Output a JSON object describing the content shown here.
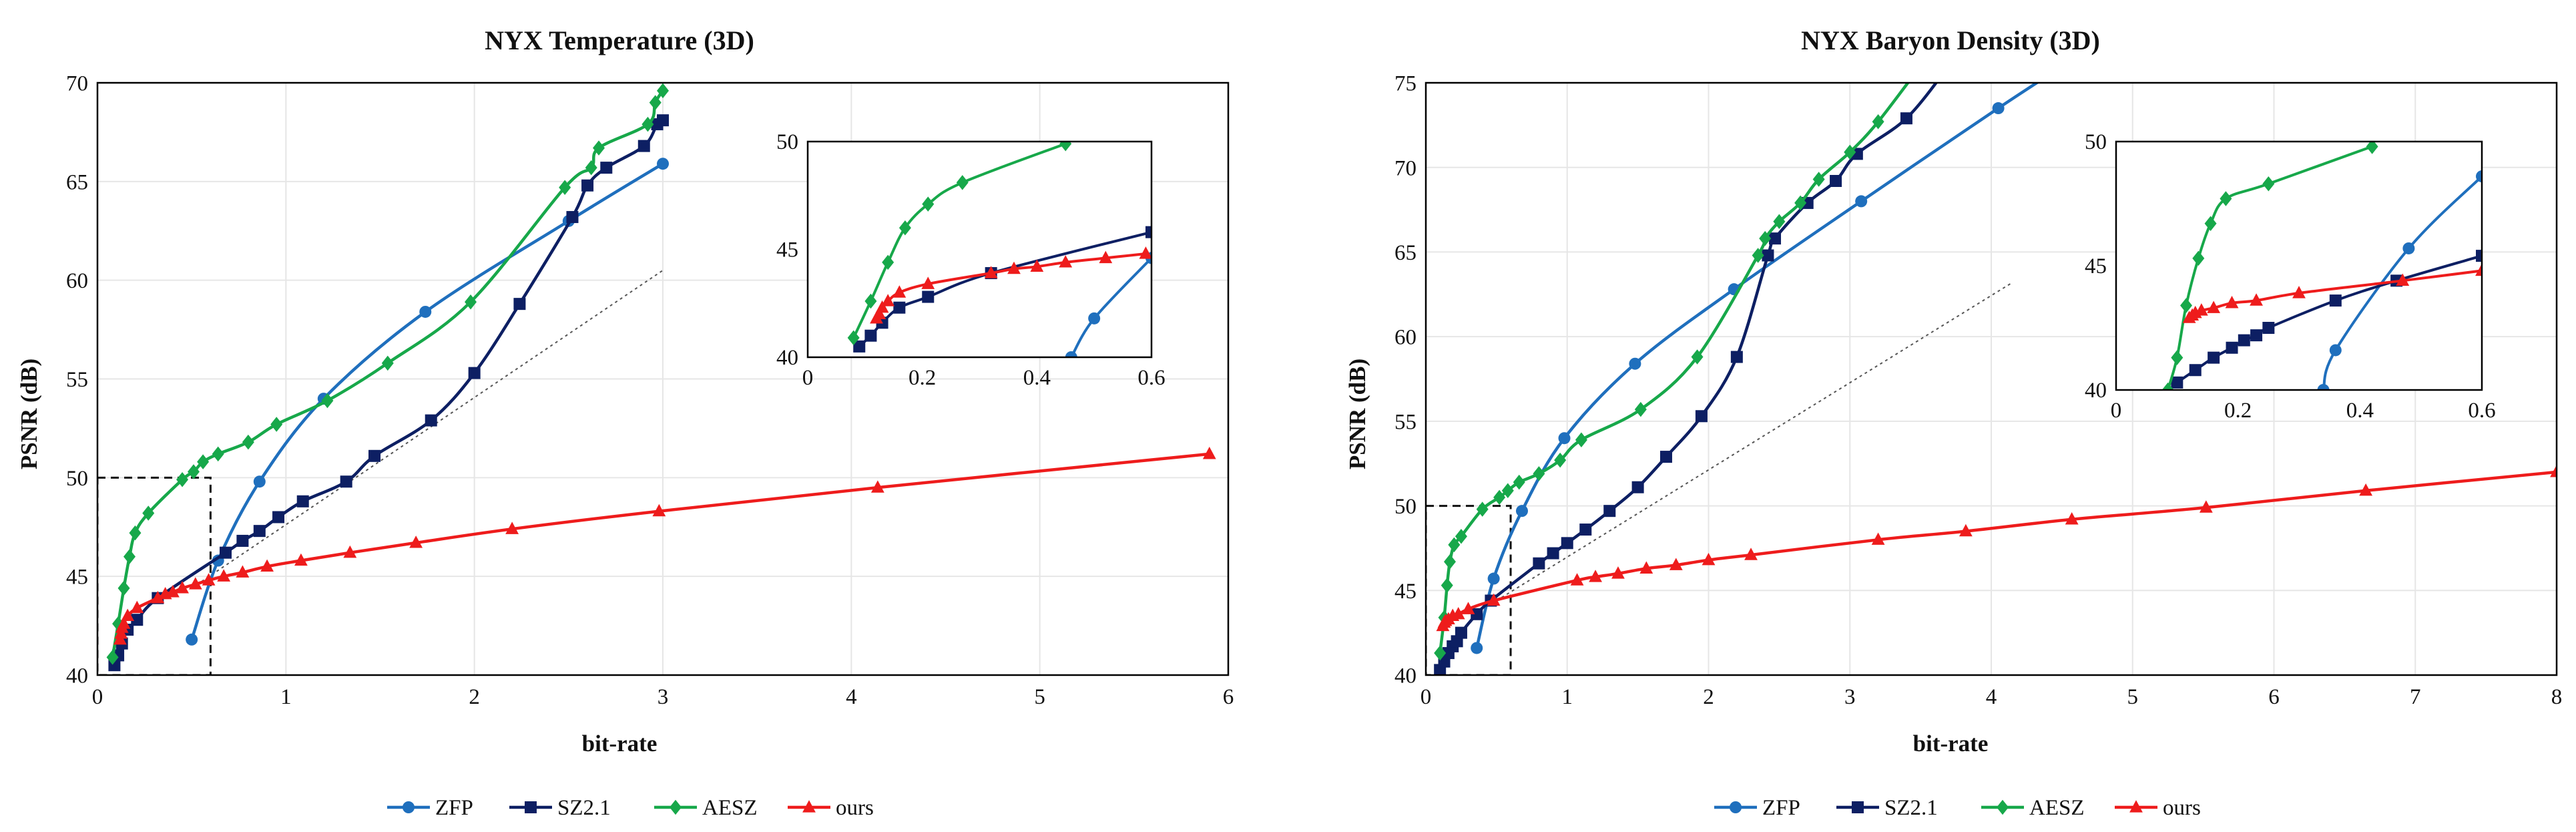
{
  "colors": {
    "ZFP": "#1f6fbd",
    "SZ2.1": "#0d1f63",
    "AESZ": "#17a84a",
    "ours": "#ee1c1c"
  },
  "chart_data": [
    {
      "type": "line",
      "title": "NYX Temperature (3D)",
      "xlabel": "bit-rate",
      "ylabel": "PSNR (dB)",
      "xlim": [
        0,
        6
      ],
      "ylim": [
        40,
        70
      ],
      "xticks": [
        0,
        1,
        2,
        3,
        4,
        5,
        6
      ],
      "yticks": [
        40,
        45,
        50,
        55,
        60,
        65,
        70
      ],
      "grid": true,
      "legend": "bottom",
      "series": [
        {
          "name": "ZFP",
          "marker": "circle",
          "points": [
            [
              0.5,
              41.8
            ],
            [
              0.64,
              45.8
            ],
            [
              0.86,
              49.8
            ],
            [
              1.2,
              54
            ],
            [
              1.74,
              58.4
            ],
            [
              2.5,
              63
            ],
            [
              3.0,
              65.9
            ]
          ]
        },
        {
          "name": "SZ2.1",
          "marker": "square",
          "points": [
            [
              0.09,
              40.5
            ],
            [
              0.11,
              41
            ],
            [
              0.13,
              41.6
            ],
            [
              0.16,
              42.3
            ],
            [
              0.21,
              42.8
            ],
            [
              0.32,
              43.9
            ],
            [
              0.68,
              46.2
            ],
            [
              0.77,
              46.8
            ],
            [
              0.86,
              47.3
            ],
            [
              0.96,
              48
            ],
            [
              1.09,
              48.8
            ],
            [
              1.32,
              49.8
            ],
            [
              1.47,
              51.1
            ],
            [
              1.77,
              52.9
            ],
            [
              2.0,
              55.3
            ],
            [
              2.24,
              58.8
            ],
            [
              2.52,
              63.2
            ],
            [
              2.6,
              64.8
            ],
            [
              2.7,
              65.7
            ],
            [
              2.9,
              66.8
            ],
            [
              2.97,
              67.9
            ],
            [
              3.0,
              68.1
            ]
          ]
        },
        {
          "name": "AESZ",
          "marker": "diamond",
          "points": [
            [
              0.08,
              40.9
            ],
            [
              0.11,
              42.6
            ],
            [
              0.14,
              44.4
            ],
            [
              0.17,
              46
            ],
            [
              0.2,
              47.2
            ],
            [
              0.27,
              48.2
            ],
            [
              0.45,
              49.9
            ],
            [
              0.51,
              50.3
            ],
            [
              0.56,
              50.8
            ],
            [
              0.64,
              51.2
            ],
            [
              0.8,
              51.8
            ],
            [
              0.95,
              52.7
            ],
            [
              1.22,
              53.9
            ],
            [
              1.54,
              55.8
            ],
            [
              1.98,
              58.9
            ],
            [
              2.48,
              64.7
            ],
            [
              2.62,
              65.7
            ],
            [
              2.66,
              66.7
            ],
            [
              2.92,
              67.9
            ],
            [
              2.96,
              69
            ],
            [
              3.0,
              69.6
            ]
          ]
        },
        {
          "name": "ours",
          "marker": "triangle",
          "points": [
            [
              0.12,
              41.8
            ],
            [
              0.125,
              42.1
            ],
            [
              0.13,
              42.4
            ],
            [
              0.14,
              42.6
            ],
            [
              0.16,
              43
            ],
            [
              0.21,
              43.4
            ],
            [
              0.32,
              43.9
            ],
            [
              0.36,
              44.1
            ],
            [
              0.4,
              44.2
            ],
            [
              0.45,
              44.4
            ],
            [
              0.52,
              44.6
            ],
            [
              0.59,
              44.8
            ],
            [
              0.67,
              45
            ],
            [
              0.77,
              45.2
            ],
            [
              0.9,
              45.5
            ],
            [
              1.08,
              45.8
            ],
            [
              1.34,
              46.2
            ],
            [
              1.69,
              46.7
            ],
            [
              2.2,
              47.4
            ],
            [
              2.98,
              48.3
            ],
            [
              4.14,
              49.5
            ],
            [
              5.9,
              51.2
            ]
          ]
        }
      ],
      "inset": {
        "xlim": [
          0,
          0.6
        ],
        "ylim": [
          40,
          50
        ],
        "xticks": [
          0,
          0.2,
          0.4,
          0.6
        ],
        "yticks": [
          40,
          45,
          50
        ],
        "series": [
          {
            "name": "ZFP",
            "points": [
              [
                0.46,
                40
              ],
              [
                0.5,
                41.8
              ],
              [
                0.6,
                44.6
              ]
            ]
          },
          {
            "name": "SZ2.1",
            "points": [
              [
                0.09,
                40.5
              ],
              [
                0.11,
                41
              ],
              [
                0.13,
                41.6
              ],
              [
                0.16,
                42.3
              ],
              [
                0.21,
                42.8
              ],
              [
                0.32,
                43.9
              ],
              [
                0.6,
                45.8
              ]
            ]
          },
          {
            "name": "AESZ",
            "points": [
              [
                0.08,
                40.9
              ],
              [
                0.11,
                42.6
              ],
              [
                0.14,
                44.4
              ],
              [
                0.17,
                46
              ],
              [
                0.21,
                47.1
              ],
              [
                0.27,
                48.1
              ],
              [
                0.45,
                49.9
              ]
            ]
          },
          {
            "name": "ours",
            "points": [
              [
                0.12,
                41.8
              ],
              [
                0.125,
                42
              ],
              [
                0.13,
                42.3
              ],
              [
                0.14,
                42.6
              ],
              [
                0.16,
                43
              ],
              [
                0.21,
                43.4
              ],
              [
                0.32,
                43.9
              ],
              [
                0.36,
                44.1
              ],
              [
                0.4,
                44.2
              ],
              [
                0.45,
                44.4
              ],
              [
                0.52,
                44.6
              ],
              [
                0.59,
                44.8
              ]
            ]
          }
        ]
      }
    },
    {
      "type": "line",
      "title": "NYX Baryon Density (3D)",
      "xlabel": "bit-rate",
      "ylabel": "PSNR (dB)",
      "xlim": [
        0,
        8
      ],
      "ylim": [
        40,
        75
      ],
      "xticks": [
        0,
        1,
        2,
        3,
        4,
        5,
        6,
        7,
        8
      ],
      "yticks": [
        40,
        45,
        50,
        55,
        60,
        65,
        70,
        75
      ],
      "grid": true,
      "legend": "bottom",
      "series": [
        {
          "name": "ZFP",
          "marker": "circle",
          "points": [
            [
              0.36,
              41.6
            ],
            [
              0.48,
              45.7
            ],
            [
              0.68,
              49.7
            ],
            [
              0.98,
              54
            ],
            [
              1.48,
              58.4
            ],
            [
              2.18,
              62.8
            ],
            [
              3.08,
              68
            ],
            [
              4.05,
              73.5
            ],
            [
              4.6,
              76.5
            ]
          ]
        },
        {
          "name": "SZ2.1",
          "marker": "square",
          "points": [
            [
              0.1,
              40.3
            ],
            [
              0.13,
              40.8
            ],
            [
              0.16,
              41.3
            ],
            [
              0.19,
              41.7
            ],
            [
              0.22,
              42
            ],
            [
              0.25,
              42.5
            ],
            [
              0.36,
              43.6
            ],
            [
              0.46,
              44.4
            ],
            [
              0.8,
              46.6
            ],
            [
              0.9,
              47.2
            ],
            [
              1.0,
              47.8
            ],
            [
              1.13,
              48.6
            ],
            [
              1.3,
              49.7
            ],
            [
              1.5,
              51.1
            ],
            [
              1.7,
              52.9
            ],
            [
              1.95,
              55.3
            ],
            [
              2.2,
              58.8
            ],
            [
              2.42,
              64.8
            ],
            [
              2.47,
              65.8
            ],
            [
              2.7,
              67.9
            ],
            [
              2.9,
              69.2
            ],
            [
              3.05,
              70.8
            ],
            [
              3.4,
              72.9
            ],
            [
              3.7,
              76
            ]
          ]
        },
        {
          "name": "AESZ",
          "marker": "diamond",
          "points": [
            [
              0.1,
              41.3
            ],
            [
              0.13,
              43.4
            ],
            [
              0.15,
              45.3
            ],
            [
              0.17,
              46.7
            ],
            [
              0.2,
              47.7
            ],
            [
              0.25,
              48.2
            ],
            [
              0.4,
              49.8
            ],
            [
              0.52,
              50.5
            ],
            [
              0.58,
              50.9
            ],
            [
              0.66,
              51.4
            ],
            [
              0.8,
              51.9
            ],
            [
              0.95,
              52.7
            ],
            [
              1.1,
              53.9
            ],
            [
              1.52,
              55.7
            ],
            [
              1.92,
              58.8
            ],
            [
              2.35,
              64.8
            ],
            [
              2.4,
              65.8
            ],
            [
              2.5,
              66.8
            ],
            [
              2.65,
              67.9
            ],
            [
              2.78,
              69.3
            ],
            [
              3.0,
              70.9
            ],
            [
              3.2,
              72.7
            ],
            [
              3.5,
              76
            ]
          ]
        },
        {
          "name": "ours",
          "marker": "triangle",
          "points": [
            [
              0.12,
              42.9
            ],
            [
              0.13,
              43.1
            ],
            [
              0.14,
              43.2
            ],
            [
              0.16,
              43.3
            ],
            [
              0.19,
              43.5
            ],
            [
              0.23,
              43.6
            ],
            [
              0.3,
              43.9
            ],
            [
              0.48,
              44.4
            ],
            [
              1.07,
              45.6
            ],
            [
              1.2,
              45.8
            ],
            [
              1.36,
              46
            ],
            [
              1.56,
              46.3
            ],
            [
              1.77,
              46.5
            ],
            [
              2.0,
              46.8
            ],
            [
              2.3,
              47.1
            ],
            [
              3.2,
              48
            ],
            [
              3.82,
              48.5
            ],
            [
              4.57,
              49.2
            ],
            [
              5.52,
              49.9
            ],
            [
              6.65,
              50.9
            ],
            [
              8.0,
              52
            ]
          ]
        }
      ],
      "inset": {
        "xlim": [
          0,
          0.6
        ],
        "ylim": [
          40,
          50
        ],
        "xticks": [
          0,
          0.2,
          0.4,
          0.6
        ],
        "yticks": [
          40,
          45,
          50
        ],
        "series": [
          {
            "name": "ZFP",
            "points": [
              [
                0.34,
                40
              ],
              [
                0.36,
                41.6
              ],
              [
                0.48,
                45.7
              ],
              [
                0.6,
                48.6
              ]
            ]
          },
          {
            "name": "SZ2.1",
            "points": [
              [
                0.1,
                40.3
              ],
              [
                0.13,
                40.8
              ],
              [
                0.16,
                41.3
              ],
              [
                0.19,
                41.7
              ],
              [
                0.21,
                42
              ],
              [
                0.23,
                42.2
              ],
              [
                0.25,
                42.5
              ],
              [
                0.36,
                43.6
              ],
              [
                0.46,
                44.4
              ],
              [
                0.6,
                45.4
              ]
            ]
          },
          {
            "name": "AESZ",
            "points": [
              [
                0.085,
                40
              ],
              [
                0.1,
                41.3
              ],
              [
                0.115,
                43.4
              ],
              [
                0.135,
                45.3
              ],
              [
                0.155,
                46.7
              ],
              [
                0.18,
                47.7
              ],
              [
                0.25,
                48.3
              ],
              [
                0.42,
                49.8
              ]
            ]
          },
          {
            "name": "ours",
            "points": [
              [
                0.12,
                42.9
              ],
              [
                0.125,
                43
              ],
              [
                0.13,
                43.1
              ],
              [
                0.14,
                43.2
              ],
              [
                0.16,
                43.3
              ],
              [
                0.19,
                43.5
              ],
              [
                0.23,
                43.6
              ],
              [
                0.3,
                43.9
              ],
              [
                0.47,
                44.4
              ],
              [
                0.6,
                44.8
              ]
            ]
          }
        ]
      }
    }
  ]
}
